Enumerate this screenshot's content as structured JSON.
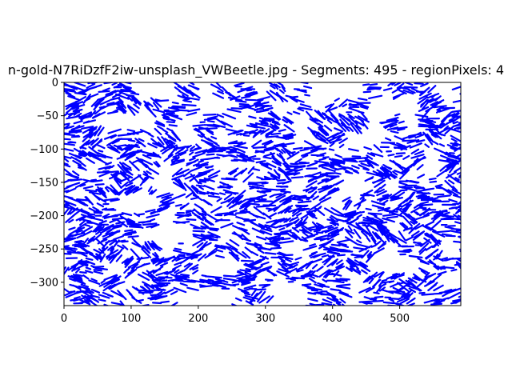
{
  "chart_data": {
    "type": "scatter",
    "title": "n-gold-N7RiDzfF2iw-unsplash_VWBeetle.jpg - Segments: 495 - regionPixels: 4",
    "xlabel": "",
    "ylabel": "",
    "xlim": [
      0,
      591
    ],
    "ylim": [
      -335,
      0
    ],
    "x_ticks": [
      0,
      100,
      200,
      300,
      400,
      500
    ],
    "y_ticks": [
      0,
      -50,
      -100,
      -150,
      -200,
      -250,
      -300
    ],
    "x_tick_labels": [
      "0",
      "100",
      "200",
      "300",
      "400",
      "500"
    ],
    "y_tick_labels": [
      "0",
      "−50",
      "−100",
      "−150",
      "−200",
      "−250",
      "−300"
    ],
    "series_color": "#0000ff",
    "grid": false,
    "legend": "none",
    "segment_count": 495
  }
}
